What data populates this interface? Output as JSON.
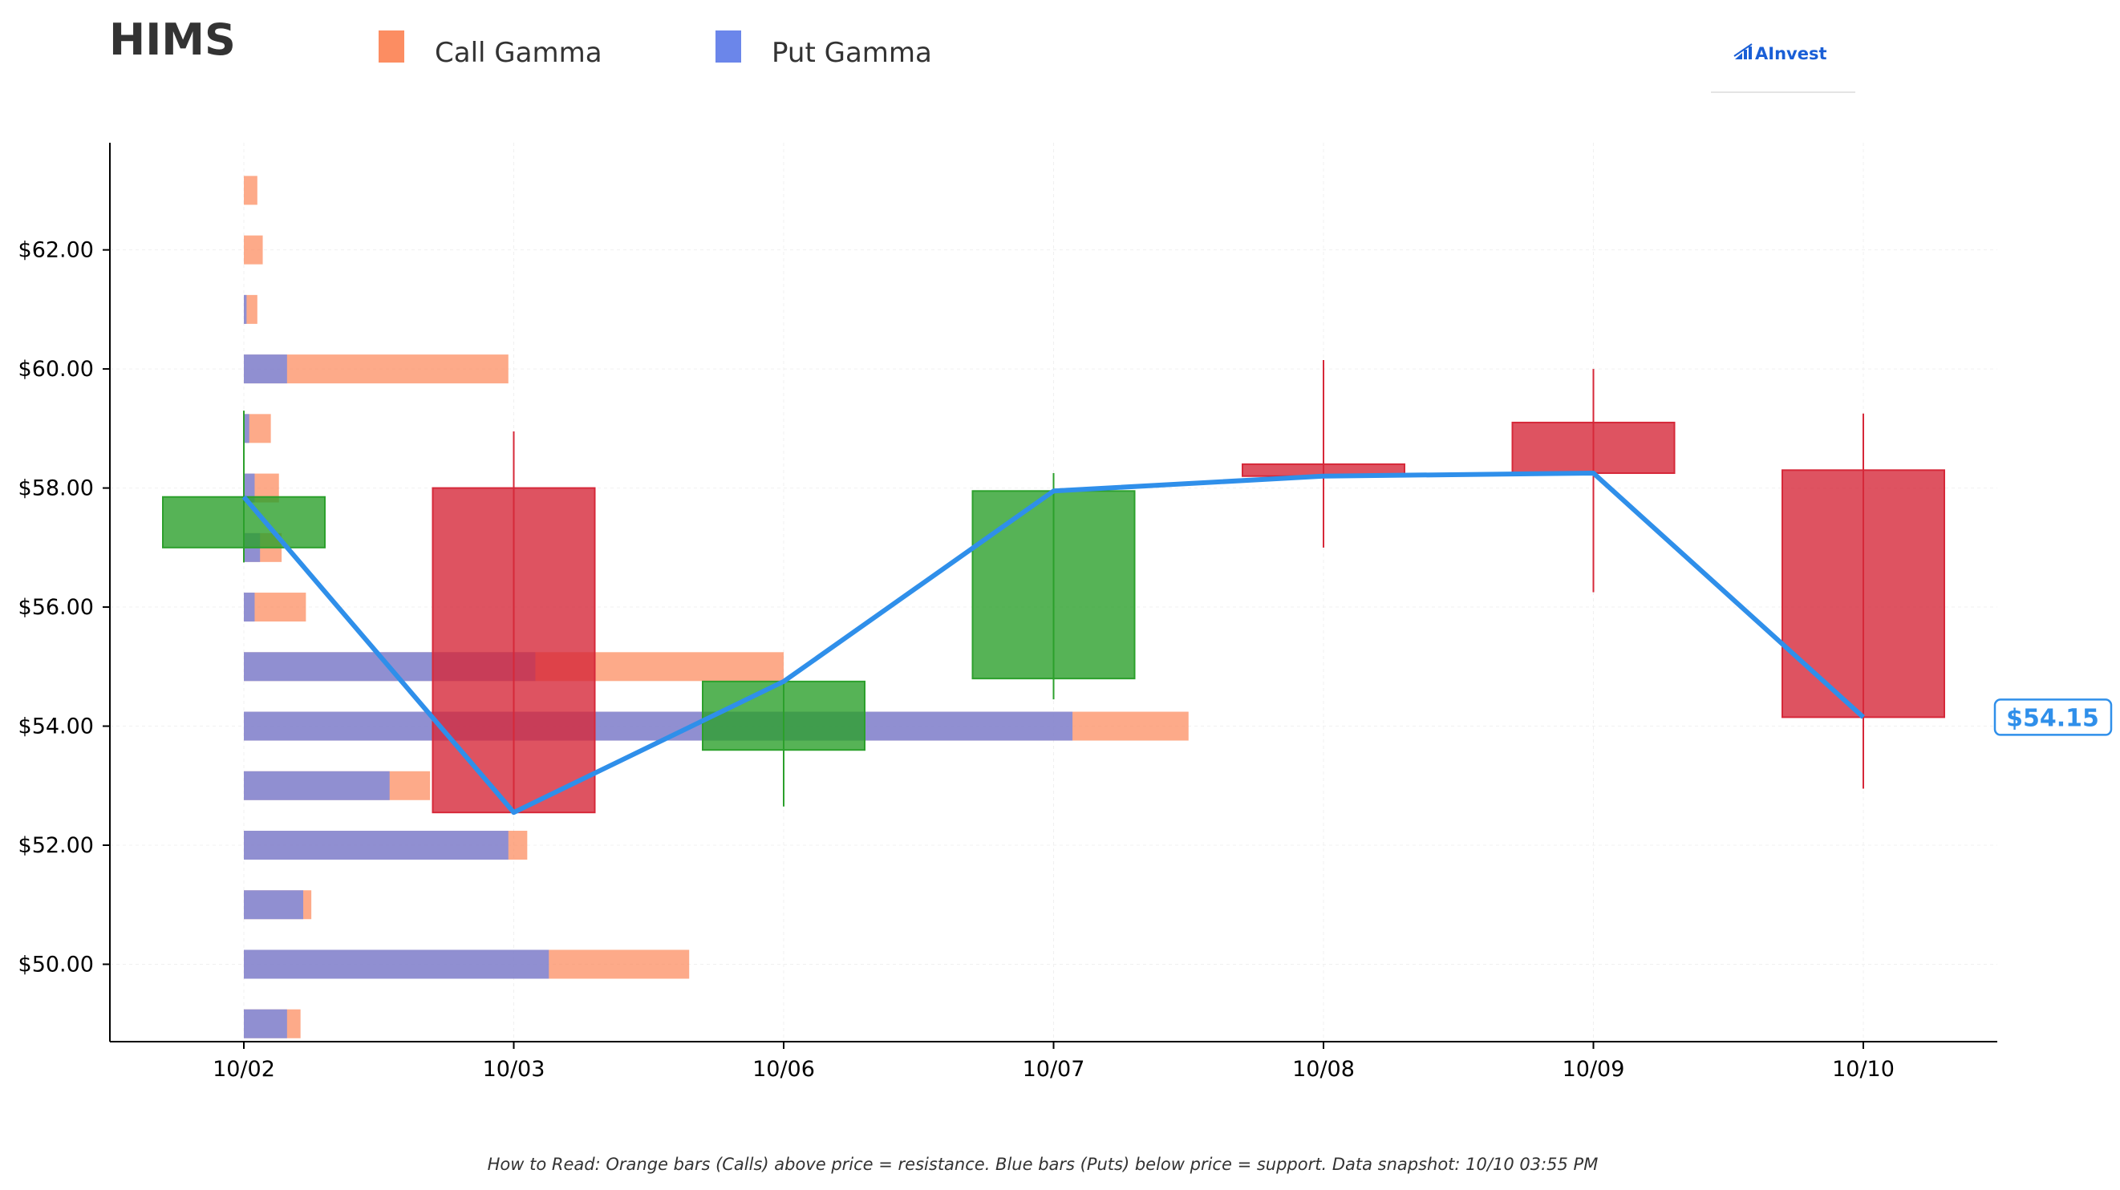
{
  "chart_data": {
    "type": "candlestick",
    "ticker": "HIMS",
    "legend": [
      {
        "label": "Call Gamma",
        "color": "#fc8d62"
      },
      {
        "label": "Put Gamma",
        "color": "#6b86ea"
      }
    ],
    "brand": "AInvest",
    "x_categories": [
      "10/02",
      "10/03",
      "10/06",
      "10/07",
      "10/08",
      "10/09",
      "10/10"
    ],
    "y_ticks": [
      50,
      52,
      54,
      56,
      58,
      60,
      62
    ],
    "y_tick_labels": [
      "$50.00",
      "$52.00",
      "$54.00",
      "$56.00",
      "$58.00",
      "$60.00",
      "$62.00"
    ],
    "ylim": [
      48.7,
      63.8
    ],
    "grid": true,
    "candles": [
      {
        "date": "10/02",
        "open": 57.0,
        "close": 57.85,
        "high": 59.3,
        "low": 56.75
      },
      {
        "date": "10/03",
        "open": 58.0,
        "close": 52.55,
        "high": 58.95,
        "low": 52.55
      },
      {
        "date": "10/06",
        "open": 53.6,
        "close": 54.75,
        "high": 54.75,
        "low": 52.65
      },
      {
        "date": "10/07",
        "open": 54.8,
        "close": 57.95,
        "high": 58.25,
        "low": 54.45
      },
      {
        "date": "10/08",
        "open": 58.4,
        "close": 58.2,
        "high": 60.15,
        "low": 57.0
      },
      {
        "date": "10/09",
        "open": 59.1,
        "close": 58.25,
        "high": 60.0,
        "low": 56.25
      },
      {
        "date": "10/10",
        "open": 58.3,
        "close": 54.15,
        "high": 59.25,
        "low": 52.95
      }
    ],
    "close_line": [
      57.85,
      52.55,
      54.75,
      57.95,
      58.2,
      58.25,
      54.15
    ],
    "gamma_bars": [
      {
        "strike": 63.0,
        "put": 0.0,
        "call": 0.05
      },
      {
        "strike": 62.0,
        "put": 0.0,
        "call": 0.07
      },
      {
        "strike": 61.0,
        "put": 0.01,
        "call": 0.05
      },
      {
        "strike": 60.0,
        "put": 0.16,
        "call": 0.98
      },
      {
        "strike": 59.0,
        "put": 0.02,
        "call": 0.1
      },
      {
        "strike": 58.0,
        "put": 0.04,
        "call": 0.13
      },
      {
        "strike": 57.0,
        "put": 0.06,
        "call": 0.14
      },
      {
        "strike": 56.0,
        "put": 0.04,
        "call": 0.23
      },
      {
        "strike": 55.0,
        "put": 1.08,
        "call": 2.0
      },
      {
        "strike": 54.0,
        "put": 3.07,
        "call": 3.5
      },
      {
        "strike": 53.0,
        "put": 0.54,
        "call": 0.69
      },
      {
        "strike": 52.0,
        "put": 0.98,
        "call": 1.05
      },
      {
        "strike": 51.0,
        "put": 0.22,
        "call": 0.25
      },
      {
        "strike": 50.0,
        "put": 1.13,
        "call": 1.65
      },
      {
        "strike": 49.0,
        "put": 0.16,
        "call": 0.21
      }
    ],
    "current_price_label": "$54.15",
    "footnote": "How to Read: Orange bars (Calls) above price = resistance. Blue bars (Puts) below price = support. Data snapshot: 10/10 03:55 PM",
    "colors": {
      "call": "#fc8d62",
      "put": "#6b86ea",
      "up": "#2ca02c",
      "down": "#d62839",
      "close_line": "#2f8fea"
    }
  }
}
